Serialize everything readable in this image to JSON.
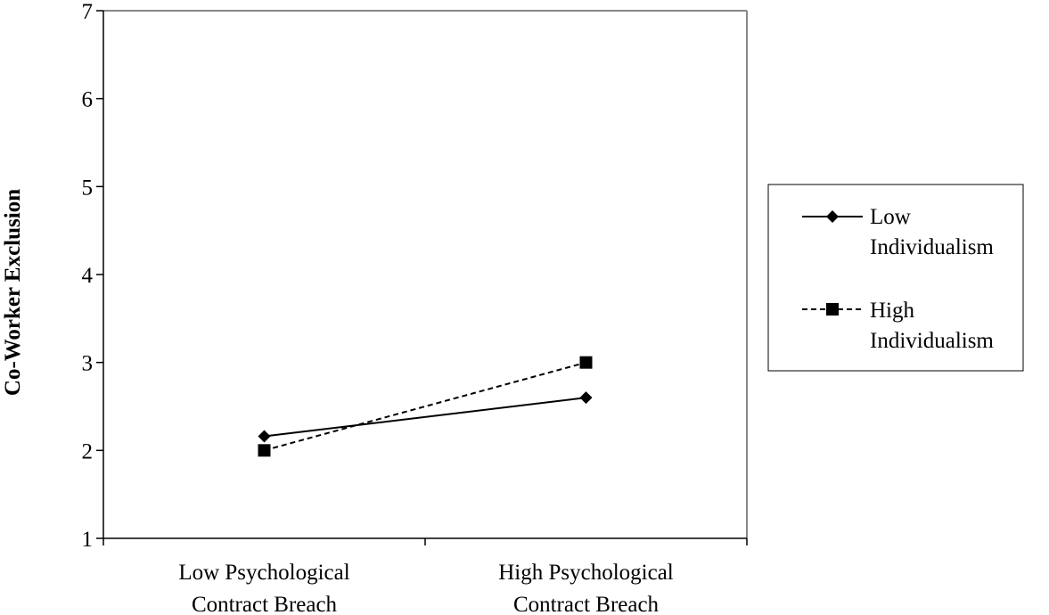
{
  "chart_data": {
    "type": "line",
    "categories": [
      [
        "Low Psychological",
        "Contract Breach"
      ],
      [
        "High Psychological",
        "Contract Breach"
      ]
    ],
    "ylabel": "Co-Worker Exclusion",
    "xlabel": "",
    "ylim": [
      1,
      7
    ],
    "yticks": [
      "1",
      "2",
      "3",
      "4",
      "5",
      "6",
      "7"
    ],
    "grid": false,
    "legend_position": "right",
    "series": [
      {
        "name": [
          "Low",
          "Individualism"
        ],
        "values": [
          2.16,
          2.6
        ],
        "line": "solid",
        "marker": "diamond",
        "color": "#000000"
      },
      {
        "name": [
          "High",
          "Individualism"
        ],
        "values": [
          2.0,
          3.0
        ],
        "line": "dashed",
        "marker": "square",
        "color": "#000000"
      }
    ]
  }
}
